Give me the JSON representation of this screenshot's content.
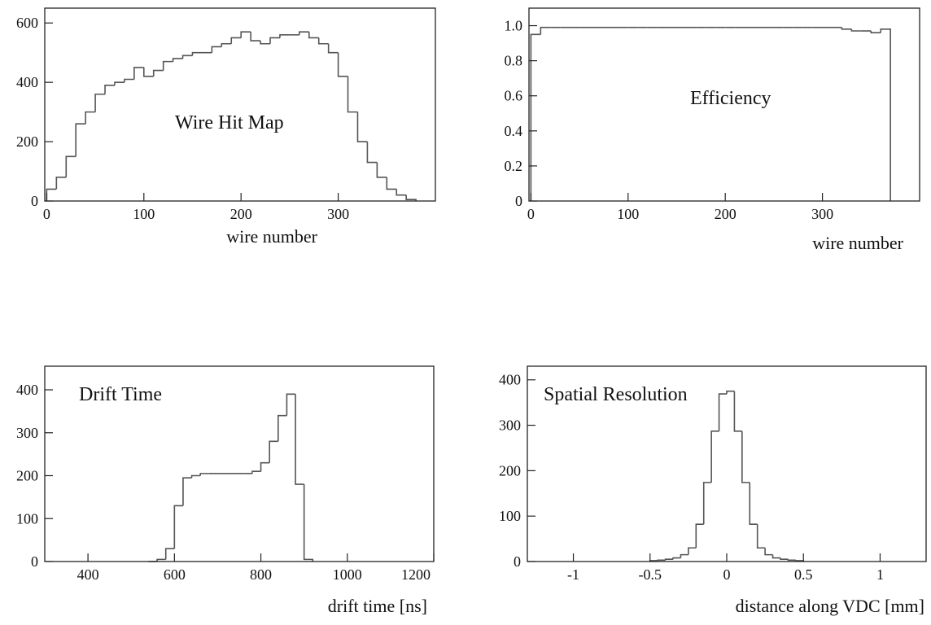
{
  "chart_data": [
    {
      "type": "histogram",
      "annotation": "Wire Hit Map",
      "xlabel": "wire number",
      "color": "#555555",
      "bins": [
        0,
        10,
        20,
        30,
        40,
        50,
        60,
        70,
        80,
        90,
        100,
        110,
        120,
        130,
        140,
        150,
        160,
        170,
        180,
        190,
        200,
        210,
        220,
        230,
        240,
        250,
        260,
        270,
        280,
        290,
        300,
        310,
        320,
        330,
        340,
        350,
        360,
        370,
        380
      ],
      "values": [
        40,
        80,
        150,
        260,
        300,
        360,
        390,
        400,
        410,
        450,
        420,
        440,
        470,
        480,
        490,
        500,
        500,
        520,
        530,
        550,
        570,
        540,
        530,
        550,
        560,
        560,
        570,
        550,
        530,
        500,
        420,
        300,
        200,
        130,
        80,
        40,
        20,
        5
      ],
      "xlim": [
        -2,
        400
      ],
      "ylim": [
        0,
        650
      ],
      "xticks": [
        0,
        100,
        200,
        300
      ],
      "yticks": [
        0,
        200,
        400,
        600
      ]
    },
    {
      "type": "histogram",
      "annotation": "Efficiency",
      "xlabel": "wire number",
      "color": "#555555",
      "bins": [
        0,
        10,
        20,
        30,
        40,
        50,
        60,
        70,
        80,
        90,
        100,
        110,
        120,
        130,
        140,
        150,
        160,
        170,
        180,
        190,
        200,
        210,
        220,
        230,
        240,
        250,
        260,
        270,
        280,
        290,
        300,
        310,
        320,
        330,
        340,
        350,
        360,
        370
      ],
      "values": [
        0.95,
        0.99,
        0.99,
        0.99,
        0.99,
        0.99,
        0.99,
        0.99,
        0.99,
        0.99,
        0.99,
        0.99,
        0.99,
        0.99,
        0.99,
        0.99,
        0.99,
        0.99,
        0.99,
        0.99,
        0.99,
        0.99,
        0.99,
        0.99,
        0.99,
        0.99,
        0.99,
        0.99,
        0.99,
        0.99,
        0.99,
        0.99,
        0.98,
        0.97,
        0.97,
        0.96,
        0.98
      ],
      "xlim": [
        -2,
        400
      ],
      "ylim": [
        0,
        1.1
      ],
      "xticks": [
        0,
        100,
        200,
        300
      ],
      "yticks": [
        0,
        0.2,
        0.4,
        0.6,
        0.8,
        {
          "value": 1,
          "label": "1.0"
        }
      ]
    },
    {
      "type": "histogram",
      "annotation": "Drift Time",
      "xlabel": "drift time [ns]",
      "color": "#555555",
      "bins": [
        540,
        560,
        580,
        600,
        620,
        640,
        660,
        680,
        700,
        720,
        740,
        760,
        780,
        800,
        820,
        840,
        860,
        880,
        900,
        920
      ],
      "values": [
        0,
        5,
        30,
        130,
        195,
        200,
        205,
        205,
        205,
        205,
        205,
        205,
        210,
        230,
        280,
        340,
        390,
        180,
        5
      ],
      "xlim": [
        300,
        1200
      ],
      "ylim": [
        0,
        455
      ],
      "xticks": [
        400,
        600,
        800,
        1000,
        1200
      ],
      "yticks": [
        0,
        100,
        200,
        300,
        400
      ]
    },
    {
      "type": "histogram",
      "annotation": "Spatial Resolution",
      "xlabel": "distance along VDC [mm]",
      "color": "#555555",
      "bins": [
        -0.5,
        -0.45,
        -0.4,
        -0.35,
        -0.3,
        -0.25,
        -0.2,
        -0.15,
        -0.1,
        -0.05,
        0,
        0.05,
        0.1,
        0.15,
        0.2,
        0.25,
        0.3,
        0.35,
        0.4,
        0.45,
        0.5
      ],
      "values": [
        2,
        3,
        5,
        8,
        15,
        30,
        82,
        174,
        287,
        369,
        375,
        287,
        174,
        82,
        30,
        15,
        8,
        5,
        3,
        2
      ],
      "xlim": [
        -1.3,
        1.3
      ],
      "ylim": [
        0,
        430
      ],
      "xticks": [
        -1,
        -0.5,
        0,
        0.5,
        1
      ],
      "yticks": [
        0,
        100,
        200,
        300,
        400
      ]
    }
  ]
}
